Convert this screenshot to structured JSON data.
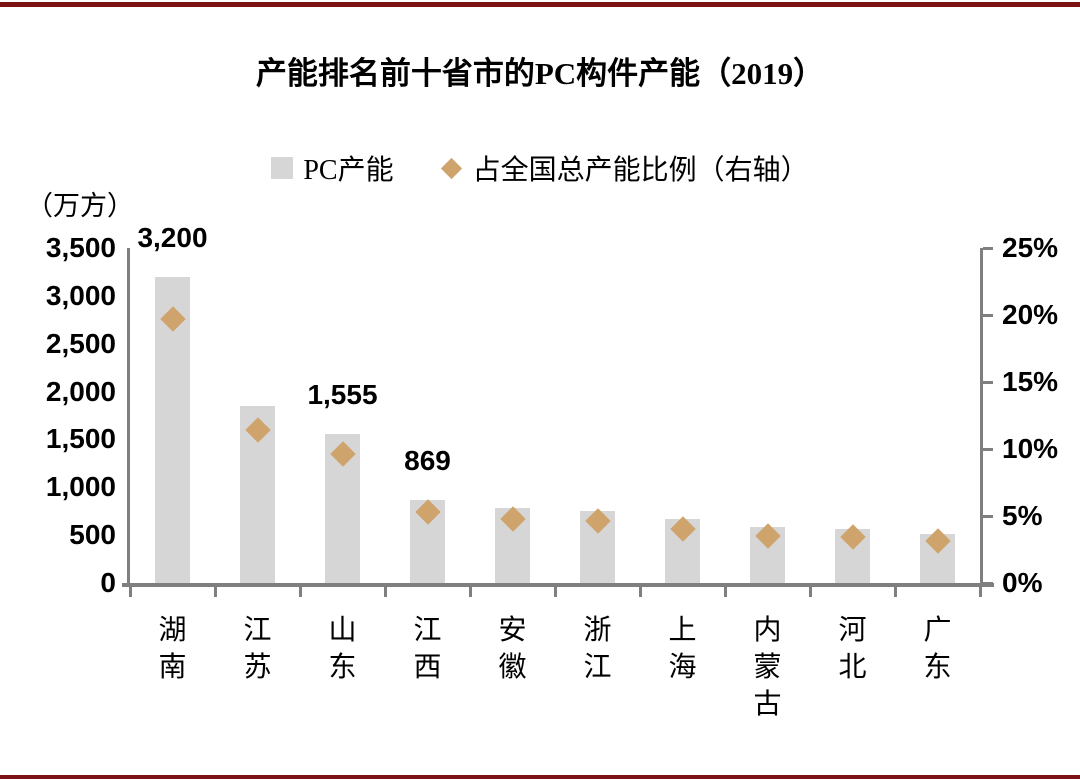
{
  "chart_data": {
    "type": "bar",
    "title": "产能排名前十省市的PC构件产能（2019）",
    "categories": [
      "湖南",
      "江苏",
      "山东",
      "江西",
      "安徽",
      "浙江",
      "上海",
      "内蒙古",
      "河北",
      "广东"
    ],
    "series": [
      {
        "name": "PC产能",
        "type": "bar",
        "axis": "left",
        "values": [
          3200,
          1850,
          1555,
          869,
          780,
          750,
          670,
          580,
          560,
          510
        ],
        "point_labels": [
          "3,200",
          "",
          "1,555",
          "869",
          "",
          "",
          "",
          "",
          "",
          ""
        ]
      },
      {
        "name": "占全国总产能比例（右轴）",
        "type": "scatter",
        "marker": "diamond",
        "axis": "right",
        "unit": "%",
        "values": [
          19.7,
          11.4,
          9.6,
          5.3,
          4.8,
          4.6,
          4.0,
          3.5,
          3.4,
          3.1
        ]
      }
    ],
    "left_axis": {
      "unit_label": "（万方）",
      "min": 0,
      "max": 3500,
      "step": 500,
      "tick_labels": [
        "0",
        "500",
        "1,000",
        "1,500",
        "2,000",
        "2,500",
        "3,000",
        "3,500"
      ]
    },
    "right_axis": {
      "min": 0,
      "max": 25,
      "step": 5,
      "tick_labels": [
        "0%",
        "5%",
        "10%",
        "15%",
        "20%",
        "25%"
      ]
    },
    "legend_position": "top",
    "grid": false
  },
  "legend": [
    {
      "label": "PC产能",
      "marker": "square"
    },
    {
      "label": "占全国总产能比例（右轴）",
      "marker": "diamond"
    }
  ],
  "colors": {
    "bar": "#d6d6d6",
    "diamond": "#cfa46c",
    "axis": "#7f7f7f",
    "rule": "#7b1315",
    "text": "#000000",
    "background": "#ffffff"
  }
}
